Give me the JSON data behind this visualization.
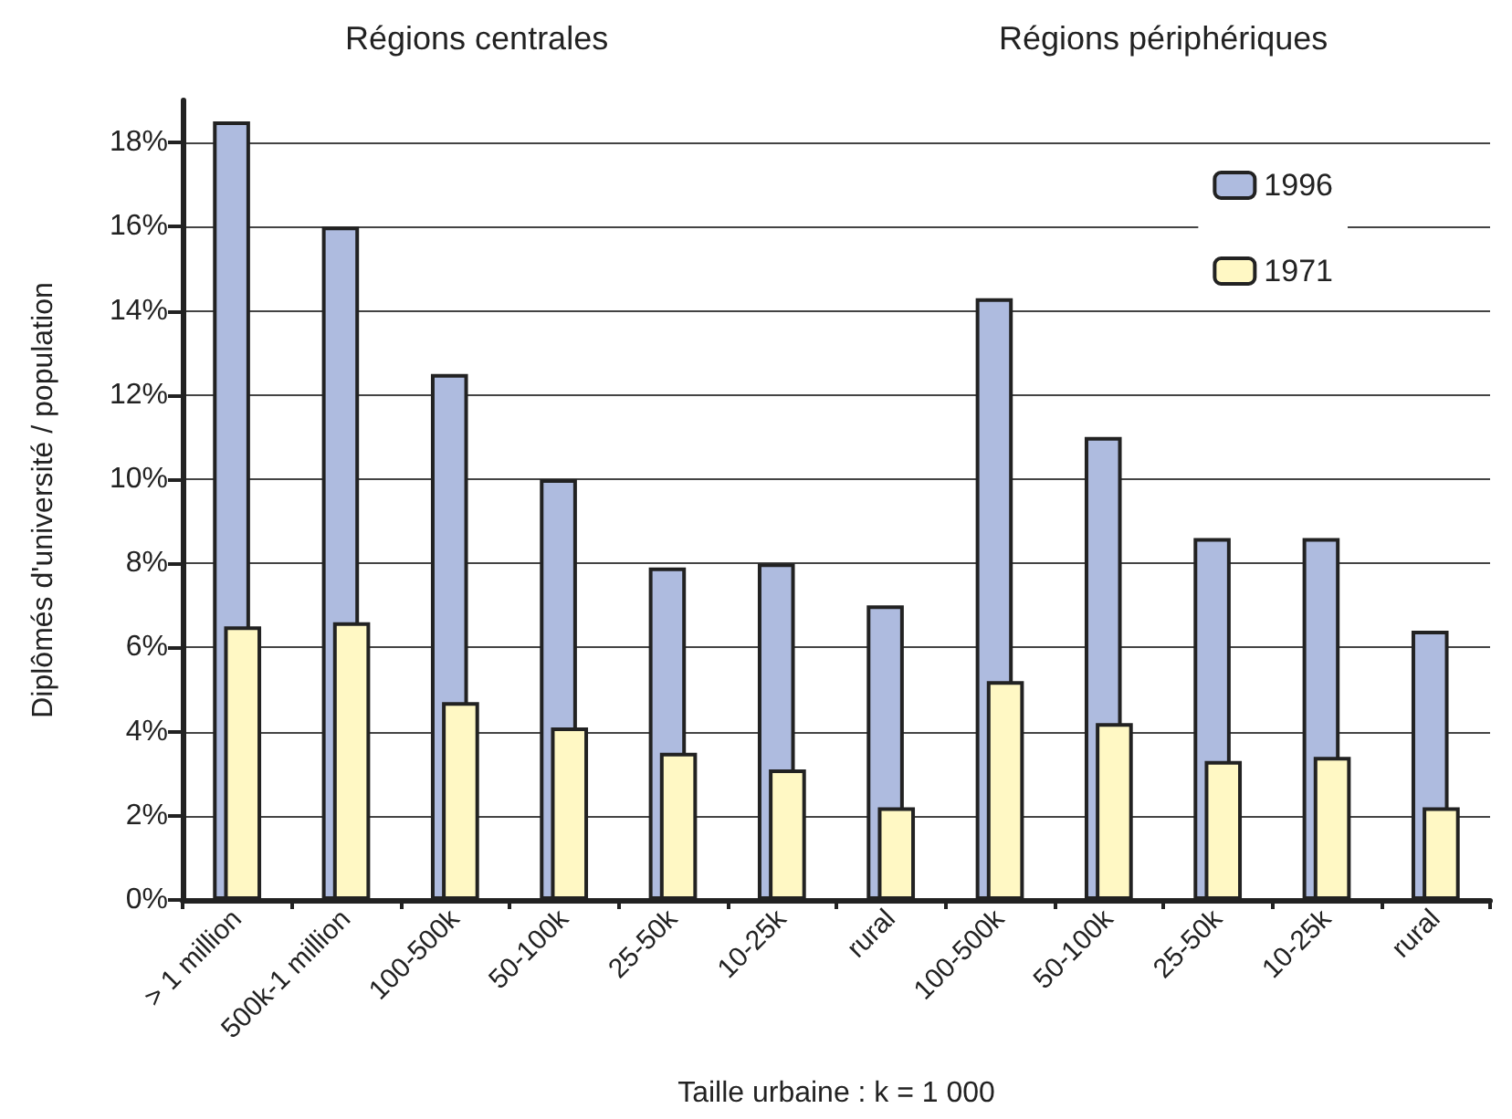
{
  "chart_data": {
    "type": "bar",
    "xlabel": "Taille urbaine : k = 1 000",
    "ylabel": "Diplômés d'université / population",
    "annotations": [
      "Régions centrales",
      "Régions périphériques"
    ],
    "categories": [
      "> 1 million",
      "500k-1 million",
      "100-500k",
      "50-100k",
      "25-50k",
      "10-25k",
      "rural",
      "100-500k",
      "50-100k",
      "25-50k",
      "10-25k",
      "rural"
    ],
    "series": [
      {
        "name": "1996",
        "color": "#aebbdf",
        "values": [
          18.5,
          16,
          12.5,
          10,
          7.9,
          8,
          7,
          14.3,
          11,
          8.6,
          8.6,
          6.4
        ]
      },
      {
        "name": "1971",
        "color": "#fff8c4",
        "values": [
          6.5,
          6.6,
          4.7,
          4.1,
          3.5,
          3.1,
          2.2,
          5.2,
          4.2,
          3.3,
          3.4,
          2.2
        ]
      }
    ],
    "ylim": [
      0,
      19
    ],
    "yticks": [
      {
        "value": 0,
        "label": "0%"
      },
      {
        "value": 2,
        "label": "2%"
      },
      {
        "value": 4,
        "label": "4%"
      },
      {
        "value": 6,
        "label": "6%"
      },
      {
        "value": 8,
        "label": "8%"
      },
      {
        "value": 10,
        "label": "10%"
      },
      {
        "value": 12,
        "label": "12%"
      },
      {
        "value": 14,
        "label": "14%"
      },
      {
        "value": 16,
        "label": "16%"
      },
      {
        "value": 18,
        "label": "18%"
      }
    ],
    "grid": "y",
    "legend": "top right"
  }
}
